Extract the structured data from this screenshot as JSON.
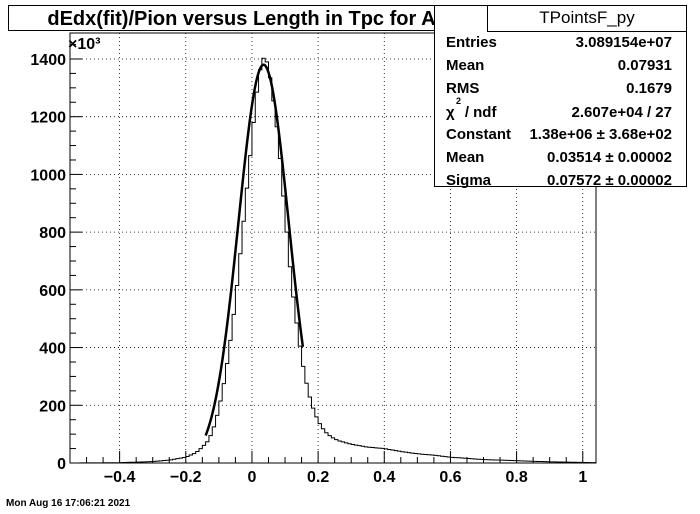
{
  "title": "dEdx(fit)/Pion versus Length in Tpc  for All",
  "timestamp": "Mon Aug 16 17:06:21 2021",
  "stats": {
    "name": "TPointsF_py",
    "entries_label": "Entries",
    "entries_value": "3.089154e+07",
    "mean_label": "Mean",
    "mean_value": "0.07931",
    "rms_label": "RMS",
    "rms_value": "0.1679",
    "chi2_label": "/ ndf",
    "chi2_symbol": "χ",
    "chi2_sup": "2",
    "chi2_value": "2.607e+04 / 27",
    "constant_label": "Constant",
    "constant_value": "1.38e+06 ± 3.68e+02",
    "fmean_label": "Mean",
    "fmean_value": "0.03514 ± 0.00002",
    "sigma_label": "Sigma",
    "sigma_value": "0.07572 ± 0.00002"
  },
  "chart_data": {
    "type": "histogram",
    "title": "dEdx(fit)/Pion versus Length in Tpc  for All",
    "xlabel": "",
    "ylabel": "",
    "y_multiplier": "×10³",
    "xlim": [
      -0.55,
      1.04
    ],
    "ylim": [
      0,
      1490
    ],
    "grid": true,
    "x_ticks": [
      -0.4,
      -0.2,
      0,
      0.2,
      0.4,
      0.6,
      0.8,
      1
    ],
    "x_tick_labels": [
      "−0.4",
      "−0.2",
      "0",
      "0.2",
      "0.4",
      "0.6",
      "0.8",
      "1"
    ],
    "y_ticks": [
      0,
      200,
      400,
      600,
      800,
      1000,
      1200,
      1400
    ],
    "y_tick_labels": [
      "0",
      "200",
      "400",
      "600",
      "800",
      "1000",
      "1200",
      "1400"
    ],
    "histogram": {
      "bin_width": 0.01,
      "points": [
        [
          -0.55,
          0
        ],
        [
          -0.4,
          1
        ],
        [
          -0.3,
          5
        ],
        [
          -0.25,
          10
        ],
        [
          -0.2,
          20
        ],
        [
          -0.17,
          35
        ],
        [
          -0.15,
          55
        ],
        [
          -0.13,
          80
        ],
        [
          -0.11,
          140
        ],
        [
          -0.09,
          240
        ],
        [
          -0.07,
          380
        ],
        [
          -0.05,
          560
        ],
        [
          -0.03,
          780
        ],
        [
          -0.01,
          1010
        ],
        [
          0.0,
          1120
        ],
        [
          0.01,
          1240
        ],
        [
          0.02,
          1330
        ],
        [
          0.03,
          1395
        ],
        [
          0.04,
          1410
        ],
        [
          0.05,
          1370
        ],
        [
          0.06,
          1300
        ],
        [
          0.08,
          1120
        ],
        [
          0.1,
          860
        ],
        [
          0.12,
          620
        ],
        [
          0.14,
          440
        ],
        [
          0.16,
          300
        ],
        [
          0.18,
          205
        ],
        [
          0.2,
          145
        ],
        [
          0.22,
          110
        ],
        [
          0.24,
          90
        ],
        [
          0.26,
          78
        ],
        [
          0.3,
          65
        ],
        [
          0.35,
          55
        ],
        [
          0.4,
          50
        ],
        [
          0.45,
          40
        ],
        [
          0.5,
          32
        ],
        [
          0.55,
          27
        ],
        [
          0.6,
          20
        ],
        [
          0.7,
          12
        ],
        [
          0.8,
          8
        ],
        [
          0.9,
          4
        ],
        [
          1.0,
          2
        ],
        [
          1.04,
          1
        ]
      ]
    },
    "gaussian_fit": {
      "constant": 1380,
      "mean": 0.03514,
      "sigma": 0.07572,
      "range": [
        -0.14,
        0.155
      ]
    }
  }
}
